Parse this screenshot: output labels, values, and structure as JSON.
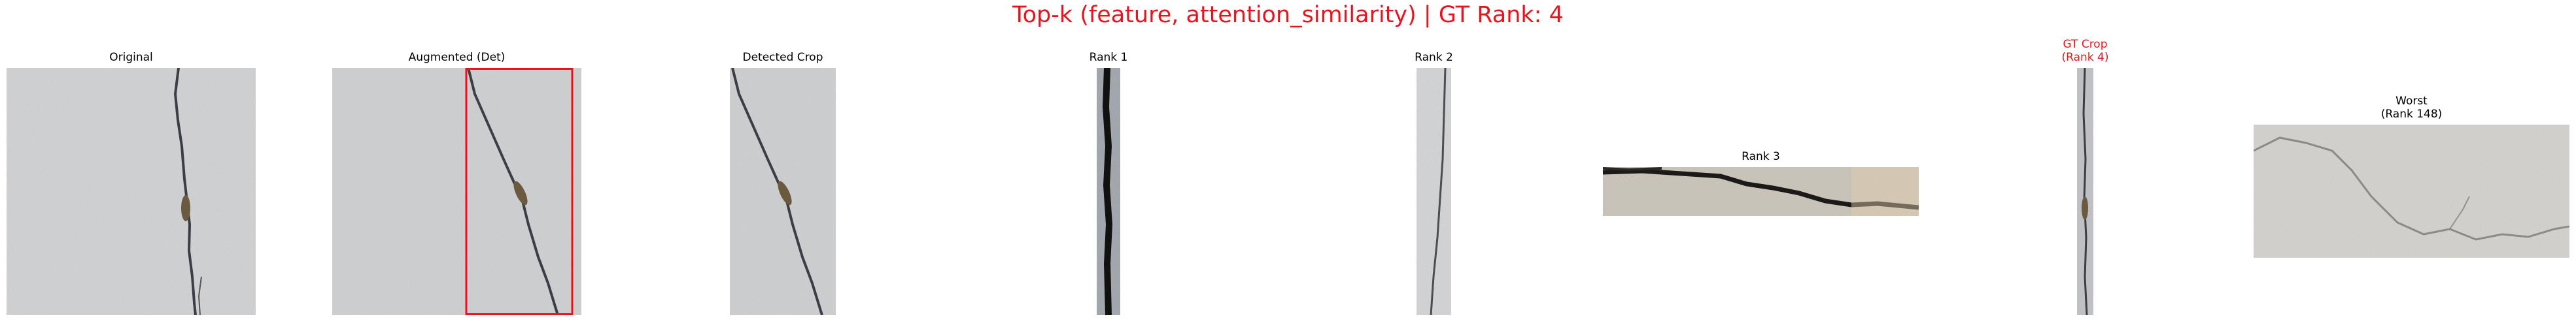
{
  "figure_title": "Top-k (feature, attention_similarity) | GT Rank: 4",
  "panels": {
    "original": {
      "title": "Original",
      "image": "concrete-crack-photo"
    },
    "augmented": {
      "title": "Augmented (Det)",
      "image": "concrete-crack-photo-with-detection-box",
      "box_color": "#e8141d"
    },
    "detected_crop": {
      "title": "Detected Crop",
      "image": "cropped-crack-strip"
    },
    "rank1": {
      "title": "Rank 1",
      "image": "dark-crack-strip"
    },
    "rank2": {
      "title": "Rank 2",
      "image": "thin-crack-strip"
    },
    "rank3": {
      "title": "Rank 3",
      "image": "horizontal-crack-strip"
    },
    "gt_crop": {
      "title": "GT Crop\n(Rank 4)",
      "image": "ground-truth-crack-strip",
      "title_color": "#e8141d"
    },
    "worst": {
      "title": "Worst\n(Rank 148)",
      "image": "faint-crack-photo"
    }
  }
}
